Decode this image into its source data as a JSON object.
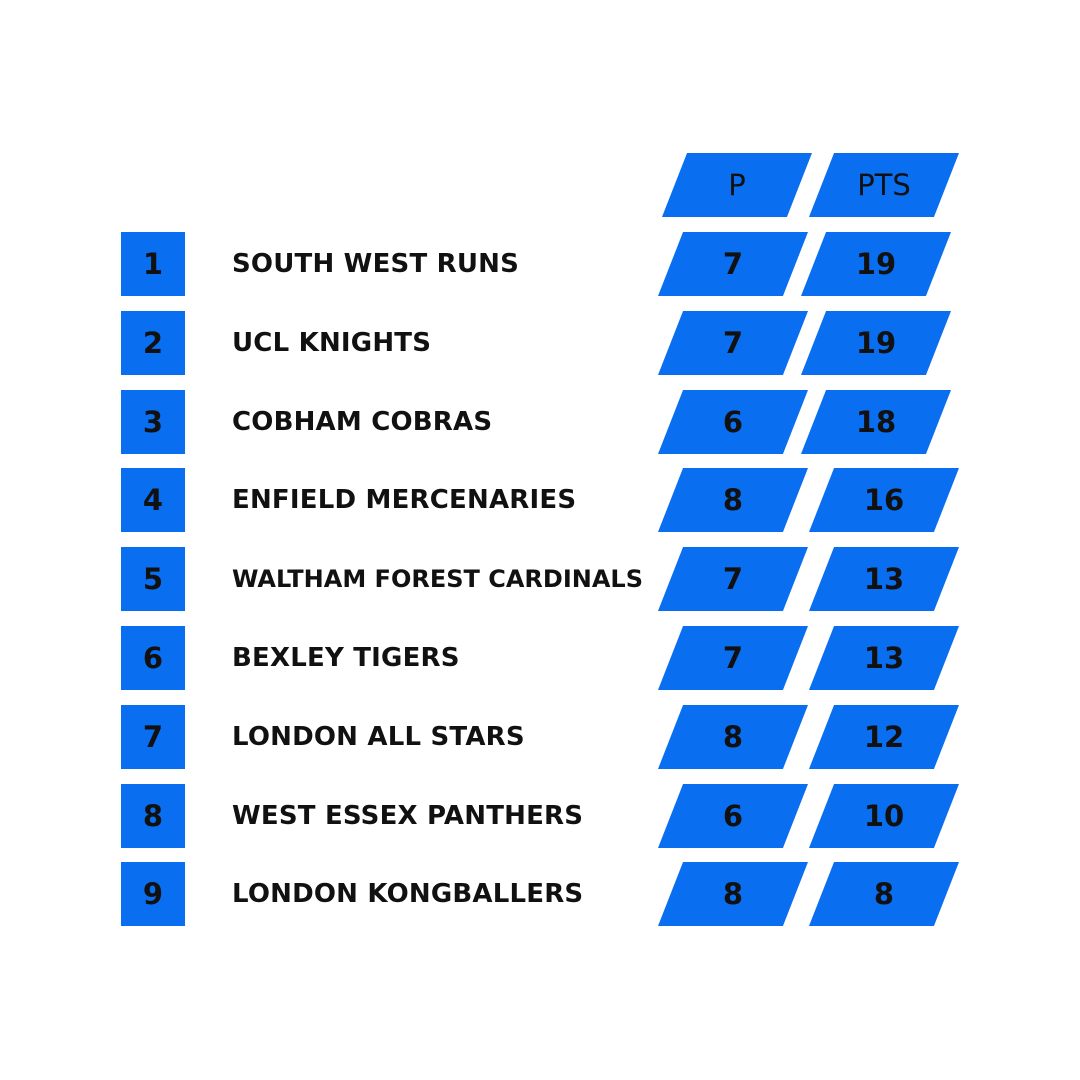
{
  "headers": {
    "p": "P",
    "pts": "PTS"
  },
  "rows": [
    {
      "rank": "1",
      "team": "SOUTH WEST RUNS",
      "p": "7",
      "pts": "19"
    },
    {
      "rank": "2",
      "team": "UCL KNIGHTS",
      "p": "7",
      "pts": "19"
    },
    {
      "rank": "3",
      "team": "COBHAM COBRAS",
      "p": "6",
      "pts": "18"
    },
    {
      "rank": "4",
      "team": "ENFIELD MERCENARIES",
      "p": "8",
      "pts": "16"
    },
    {
      "rank": "5",
      "team": "WALTHAM FOREST CARDINALS",
      "p": "7",
      "pts": "13"
    },
    {
      "rank": "6",
      "team": "BEXLEY TIGERS",
      "p": "7",
      "pts": "13"
    },
    {
      "rank": "7",
      "team": "LONDON ALL STARS",
      "p": "8",
      "pts": "12"
    },
    {
      "rank": "8",
      "team": "WEST ESSEX PANTHERS",
      "p": "6",
      "pts": "10"
    },
    {
      "rank": "9",
      "team": "LONDON KONGBALLERS",
      "p": "8",
      "pts": "8"
    }
  ],
  "colors": {
    "accent": "#0a6ef0",
    "text": "#111111",
    "background": "#ffffff"
  }
}
